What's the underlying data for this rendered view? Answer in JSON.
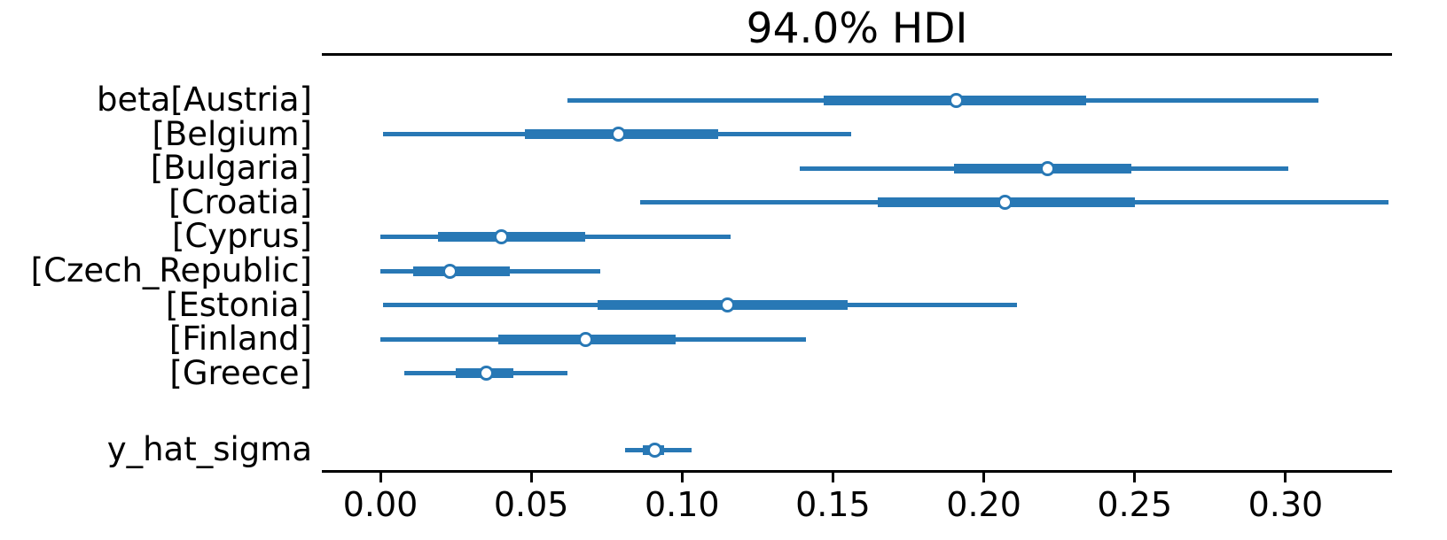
{
  "colors": {
    "data_color": "#2878b5",
    "marker_face": "#ffffff",
    "axis_color": "#000000",
    "text_color": "#000000",
    "background": "#ffffff"
  },
  "chart_data": {
    "type": "forest",
    "title": "94.0% HDI",
    "hdi_prob": 0.94,
    "xlabel": "",
    "ylabel": "",
    "xlim": [
      -0.0194,
      0.3353
    ],
    "grid": false,
    "legend_position": "none",
    "x_ticks": [
      0.0,
      0.05,
      0.1,
      0.15,
      0.2,
      0.25,
      0.3
    ],
    "x_tick_labels": [
      "0.00",
      "0.05",
      "0.10",
      "0.15",
      "0.20",
      "0.25",
      "0.30"
    ],
    "groups": [
      {
        "variable": "beta",
        "rows": [
          {
            "label": "beta[Austria]",
            "hdi": [
              0.062,
              0.311
            ],
            "quartile": [
              0.147,
              0.234
            ],
            "median": 0.191
          },
          {
            "label": "[Belgium]",
            "hdi": [
              0.001,
              0.156
            ],
            "quartile": [
              0.048,
              0.112
            ],
            "median": 0.079
          },
          {
            "label": "[Bulgaria]",
            "hdi": [
              0.139,
              0.301
            ],
            "quartile": [
              0.19,
              0.249
            ],
            "median": 0.221
          },
          {
            "label": "[Croatia]",
            "hdi": [
              0.086,
              0.334
            ],
            "quartile": [
              0.165,
              0.25
            ],
            "median": 0.207
          },
          {
            "label": "[Cyprus]",
            "hdi": [
              0.0,
              0.116
            ],
            "quartile": [
              0.019,
              0.068
            ],
            "median": 0.04
          },
          {
            "label": "[Czech_Republic]",
            "hdi": [
              0.0,
              0.073
            ],
            "quartile": [
              0.011,
              0.043
            ],
            "median": 0.023
          },
          {
            "label": "[Estonia]",
            "hdi": [
              0.001,
              0.211
            ],
            "quartile": [
              0.072,
              0.155
            ],
            "median": 0.115
          },
          {
            "label": "[Finland]",
            "hdi": [
              0.0,
              0.141
            ],
            "quartile": [
              0.039,
              0.098
            ],
            "median": 0.068
          },
          {
            "label": "[Greece]",
            "hdi": [
              0.008,
              0.062
            ],
            "quartile": [
              0.025,
              0.044
            ],
            "median": 0.035
          }
        ]
      },
      {
        "variable": "y_hat_sigma",
        "rows": [
          {
            "label": "y_hat_sigma",
            "hdi": [
              0.081,
              0.103
            ],
            "quartile": [
              0.087,
              0.094
            ],
            "median": 0.091
          }
        ]
      }
    ]
  }
}
